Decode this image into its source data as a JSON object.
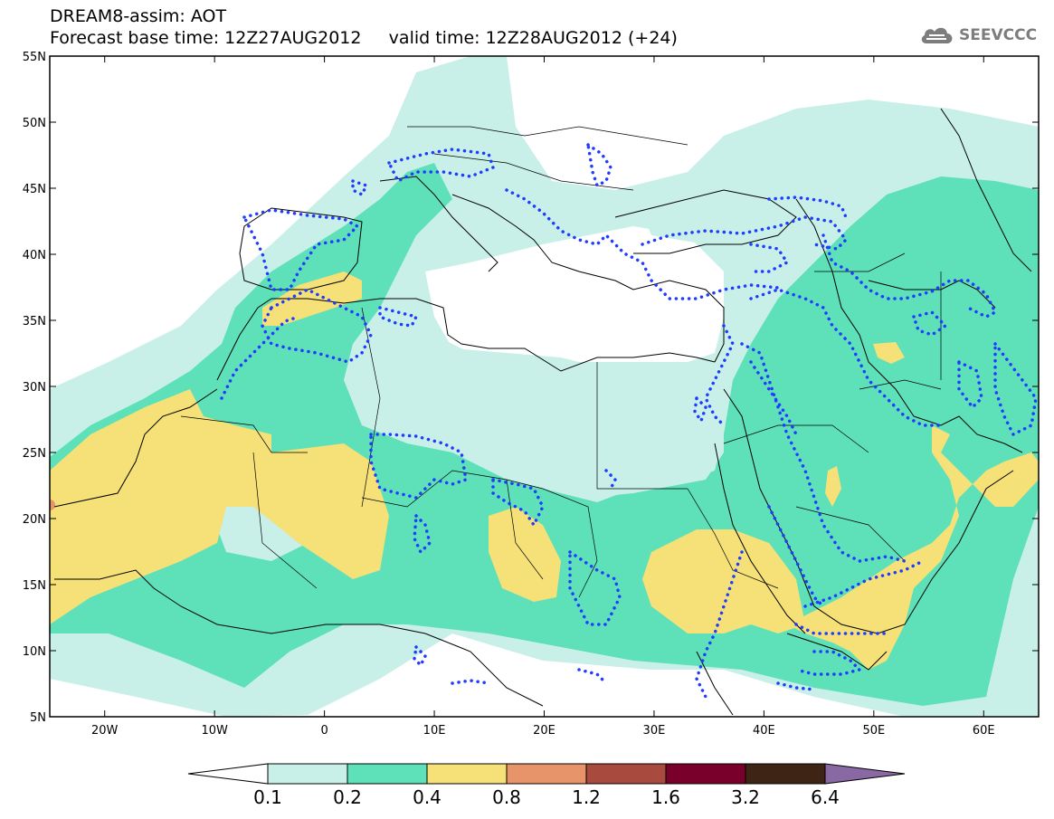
{
  "header": {
    "line1": "DREAM8-assim: AOT",
    "line2": "Forecast base time: 12Z27AUG2012     valid time: 12Z28AUG2012 (+24)",
    "logo_text": "SEEVCCC"
  },
  "map": {
    "lon_range": [
      -25,
      65
    ],
    "lat_range": [
      5,
      55
    ],
    "lat_ticks": [
      "55N",
      "50N",
      "45N",
      "40N",
      "35N",
      "30N",
      "25N",
      "20N",
      "15N",
      "10N",
      "5N"
    ],
    "lon_ticks": [
      "20W",
      "10W",
      "0",
      "10E",
      "20E",
      "30E",
      "40E",
      "50E",
      "60E"
    ],
    "variable": "AOT"
  },
  "colorbar": {
    "labels": [
      "0.1",
      "0.2",
      "0.4",
      "0.8",
      "1.2",
      "1.6",
      "3.2",
      "6.4"
    ],
    "colors": [
      "#ffffff",
      "#c8f0e8",
      "#5ee0b8",
      "#f5e178",
      "#e8946a",
      "#a84a3e",
      "#78002a",
      "#3d2414",
      "#8a68a4"
    ]
  },
  "colors": {
    "very_light": "#c8f0e8",
    "light": "#5ee0b8",
    "yellow": "#f5e178",
    "orange": "#e8946a",
    "dotted_contour": "#1f3cff",
    "coastline": "#000000"
  }
}
